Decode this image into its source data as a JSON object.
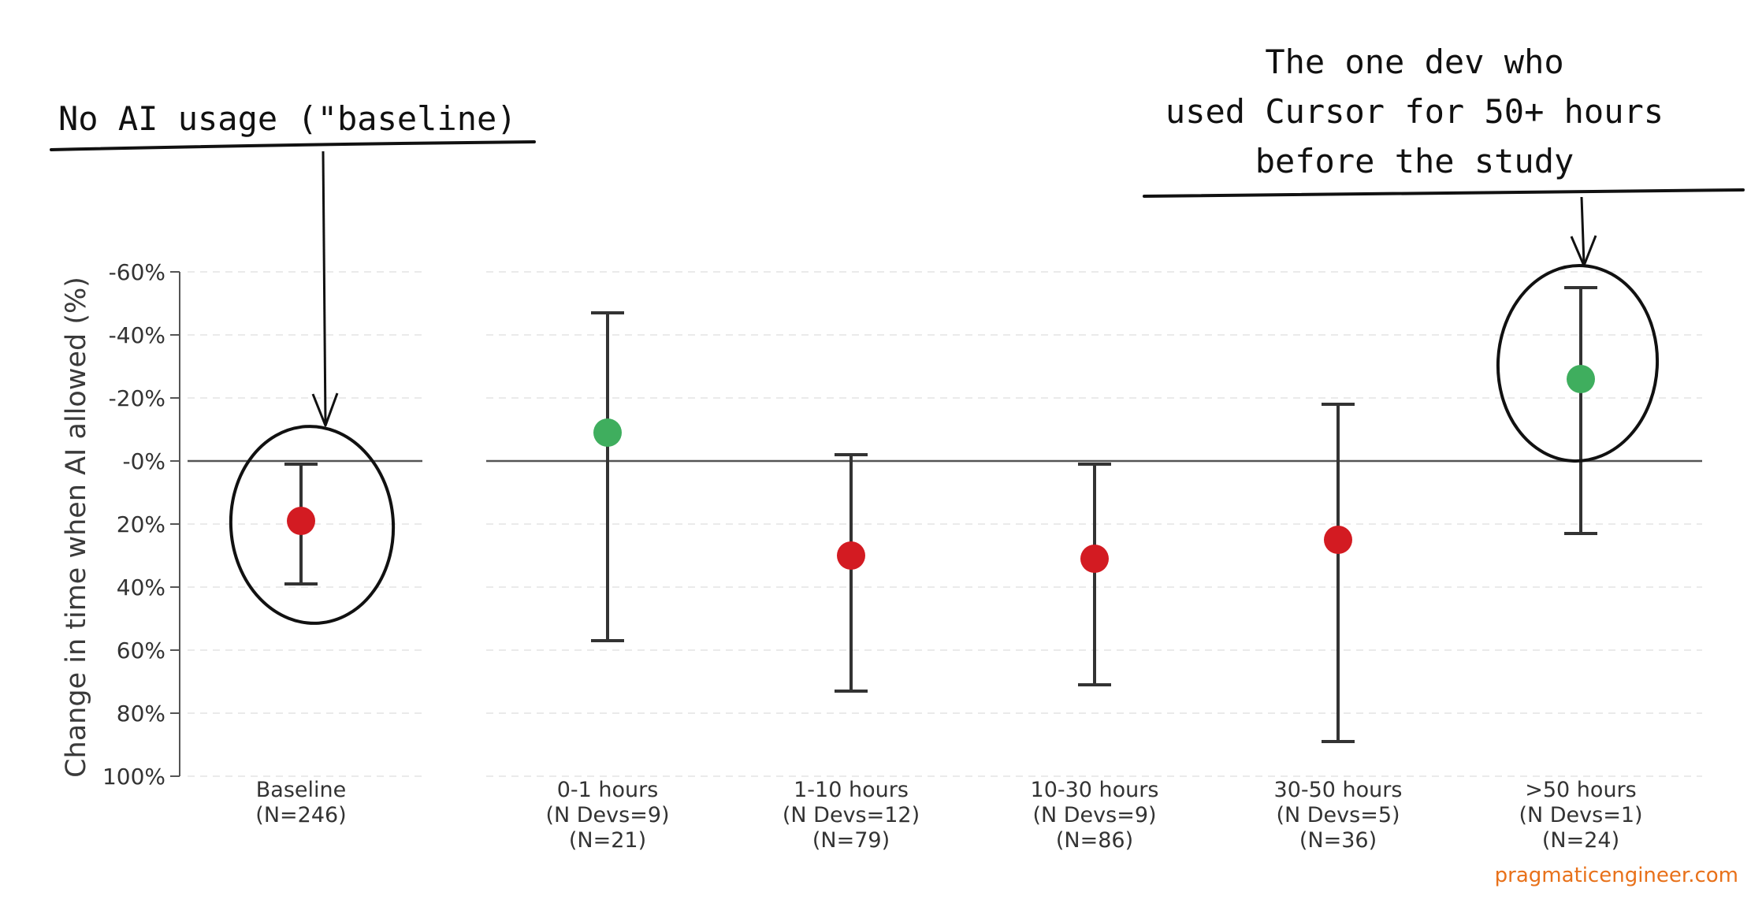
{
  "chart_data": {
    "type": "scatter",
    "ylabel": "Change in time when AI allowed (%)",
    "y_axis": {
      "min": -60,
      "max": 100,
      "inverted": true,
      "tick_step": 20
    },
    "yticks": [
      "-60%",
      "-40%",
      "-20%",
      "-0%",
      "20%",
      "40%",
      "60%",
      "80%",
      "100%"
    ],
    "grid": "horizontal dashed",
    "reference_line": 0,
    "groups": [
      {
        "label_lines": [
          "Baseline",
          "(N=246)"
        ],
        "estimate": 19,
        "ci_low": 1,
        "ci_high": 39,
        "color": "#d31b22"
      },
      {
        "label_lines": [
          "0-1 hours",
          "(N Devs=9)",
          "(N=21)"
        ],
        "estimate": -9,
        "ci_low": -47,
        "ci_high": 57,
        "color": "#3fae5e"
      },
      {
        "label_lines": [
          "1-10 hours",
          "(N Devs=12)",
          "(N=79)"
        ],
        "estimate": 30,
        "ci_low": -2,
        "ci_high": 73,
        "color": "#d31b22"
      },
      {
        "label_lines": [
          "10-30 hours",
          "(N Devs=9)",
          "(N=86)"
        ],
        "estimate": 31,
        "ci_low": 1,
        "ci_high": 71,
        "color": "#d31b22"
      },
      {
        "label_lines": [
          "30-50 hours",
          "(N Devs=5)",
          "(N=36)"
        ],
        "estimate": 25,
        "ci_low": -18,
        "ci_high": 89,
        "color": "#d31b22"
      },
      {
        "label_lines": [
          ">50 hours",
          "(N Devs=1)",
          "(N=24)"
        ],
        "estimate": -26,
        "ci_low": -55,
        "ci_high": 23,
        "color": "#3fae5e"
      }
    ],
    "panels": [
      [
        0
      ],
      [
        1,
        2,
        3,
        4,
        5
      ]
    ],
    "annotations": [
      {
        "text_lines": [
          "No AI usage (\"baseline)"
        ],
        "points_to_group": 0
      },
      {
        "text_lines": [
          "The one dev who",
          "used Cursor for 50+ hours",
          "before the study"
        ],
        "points_to_group": 5
      }
    ]
  },
  "watermark": "pragmaticengineer.com"
}
